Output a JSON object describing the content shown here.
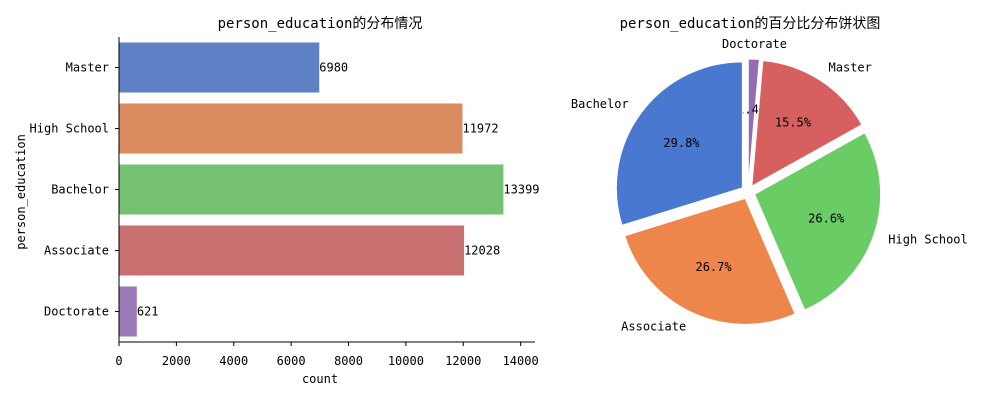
{
  "chart_data": [
    {
      "type": "bar",
      "orientation": "horizontal",
      "title": "person_education的分布情况",
      "xlabel": "count",
      "ylabel": "person_education",
      "xlim": [
        0,
        14500
      ],
      "xticks": [
        0,
        2000,
        4000,
        6000,
        8000,
        10000,
        12000,
        14000
      ],
      "categories": [
        "Master",
        "High School",
        "Bachelor",
        "Associate",
        "Doctorate"
      ],
      "values": [
        6980,
        11972,
        13399,
        12028,
        621
      ],
      "data_labels": [
        "6980",
        "11972",
        "13399",
        "12028",
        "621"
      ],
      "colors": [
        "#5e80c4",
        "#d98b5f",
        "#75c172",
        "#c86f6f",
        "#9b7ab8"
      ],
      "grid": false
    },
    {
      "type": "pie",
      "title": "person_education的百分比分布饼状图",
      "labels": [
        "Doctorate",
        "Master",
        "High School",
        "Associate",
        "Bachelor"
      ],
      "values": [
        1.4,
        15.5,
        26.6,
        26.7,
        29.8
      ],
      "pct_labels": [
        "1.4%",
        "15.5%",
        "26.6%",
        "26.7%",
        "29.8%"
      ],
      "colors": [
        "#956cb4",
        "#d65f5f",
        "#6acc65",
        "#ee854a",
        "#4878d0"
      ],
      "exploded": true
    }
  ]
}
